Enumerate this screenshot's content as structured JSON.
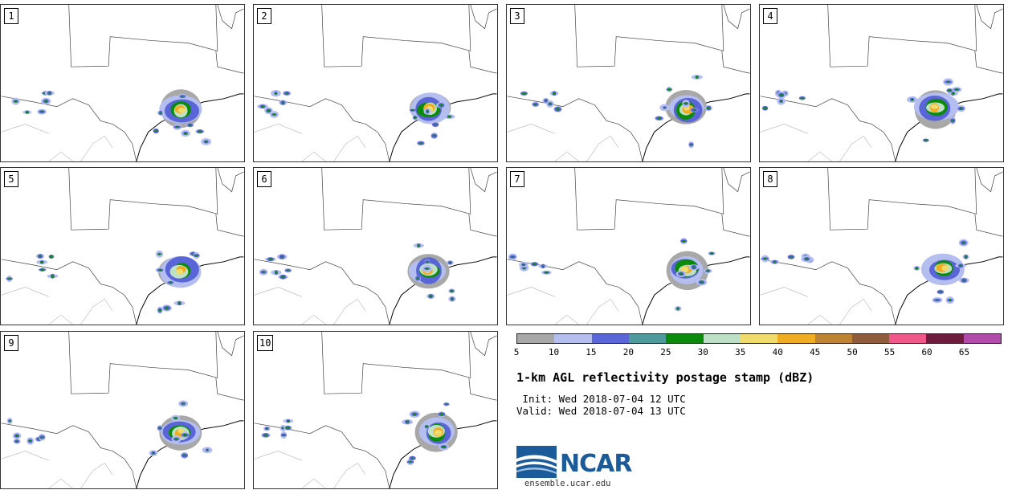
{
  "panels": [
    {
      "label": "1"
    },
    {
      "label": "2"
    },
    {
      "label": "3"
    },
    {
      "label": "4"
    },
    {
      "label": "5"
    },
    {
      "label": "6"
    },
    {
      "label": "7"
    },
    {
      "label": "8"
    },
    {
      "label": "9"
    },
    {
      "label": "10"
    }
  ],
  "chart_data": {
    "type": "heatmap",
    "title": "1-km AGL reflectivity postage stamp (dBZ)",
    "init": " Init: Wed 2018-07-04 12 UTC",
    "valid": "Valid: Wed 2018-07-04 13 UTC",
    "colorbar": {
      "unit": "dBZ",
      "bounds": [
        5,
        10,
        15,
        20,
        25,
        30,
        35,
        40,
        45,
        50,
        55,
        60,
        65,
        70
      ],
      "tick_labels": [
        "5",
        "10",
        "15",
        "20",
        "25",
        "30",
        "35",
        "40",
        "45",
        "50",
        "55",
        "60",
        "65"
      ],
      "colors": [
        "#a8a8a8",
        "#b4bfef",
        "#5a65d8",
        "#4f9a9c",
        "#0b8a0b",
        "#bde0c6",
        "#f0dc6c",
        "#f0ad24",
        "#bd8434",
        "#8f5c3e",
        "#ef5889",
        "#6e1d3f",
        "#b24caa"
      ]
    },
    "members": 10
  },
  "logo": {
    "text": "NCAR",
    "site": "ensemble.ucar.edu"
  }
}
